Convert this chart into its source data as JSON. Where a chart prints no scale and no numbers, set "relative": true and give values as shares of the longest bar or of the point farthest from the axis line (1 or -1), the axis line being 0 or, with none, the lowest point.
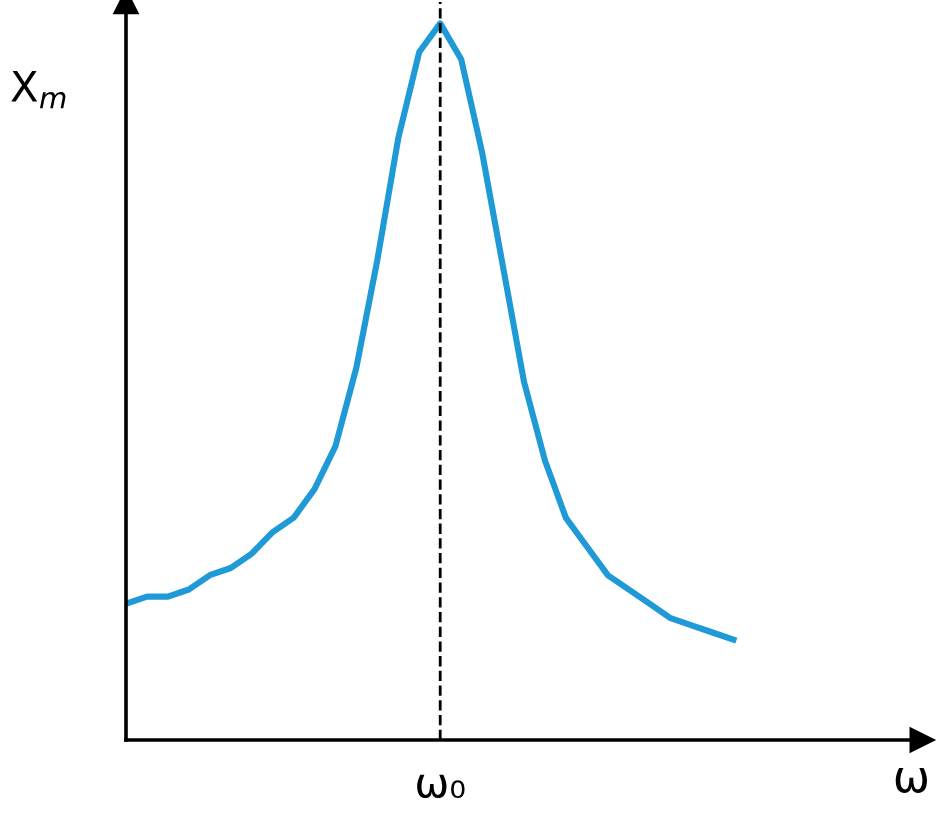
{
  "chart_data": {
    "type": "line",
    "relative": true,
    "ylabel": "X$_{m}$",
    "xlabel": "ω",
    "legend": false,
    "marker": "none",
    "line_style": "solid",
    "categories": [
      null,
      null,
      null,
      null,
      null,
      null,
      null,
      null,
      null,
      null,
      null,
      null,
      null,
      null,
      null,
      null,
      null,
      null,
      null,
      null,
      null,
      null,
      null,
      null,
      null,
      null,
      null,
      null,
      null,
      null,
      null,
      null,
      null,
      null,
      null,
      null,
      null,
      null,
      null
    ],
    "annotations": [
      "ω₀"
    ],
    "series": [
      {
        "color": "#1f9ad6",
        "values": [
          0.19,
          0.2,
          0.2,
          0.21,
          0.23,
          0.24,
          0.26,
          0.29,
          0.31,
          0.35,
          0.41,
          0.52,
          0.67,
          0.84,
          0.96,
          1,
          0.95,
          0.82,
          0.66,
          0.5,
          0.39,
          0.31,
          0.27,
          0.23,
          0.21,
          0.19,
          0.17,
          0.16,
          0.15,
          0.14,
          null,
          null,
          null,
          null,
          null,
          null,
          null,
          null,
          null
        ]
      }
    ]
  }
}
